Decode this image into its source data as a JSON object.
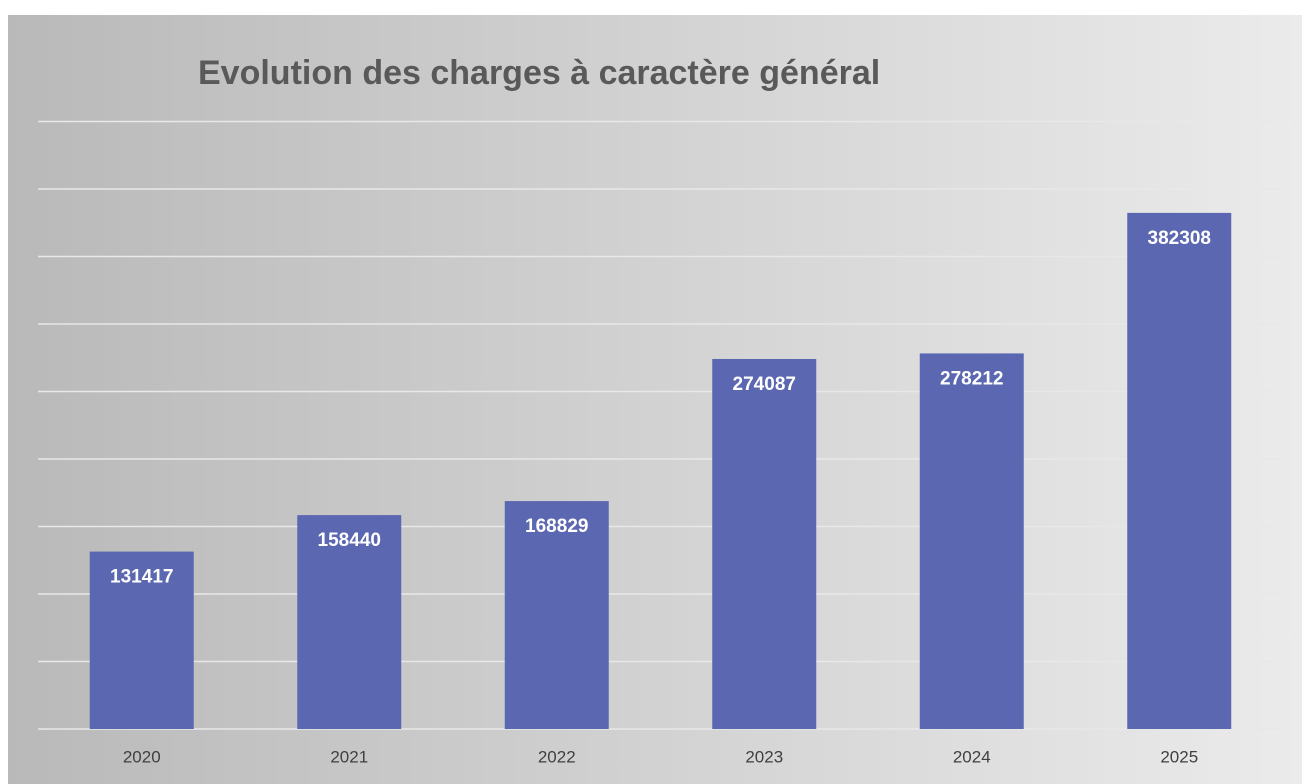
{
  "chart_data": {
    "type": "bar",
    "title": "Evolution des charges à caractère général",
    "categories": [
      "2020",
      "2021",
      "2022",
      "2023",
      "2024",
      "2025"
    ],
    "values": [
      131417,
      158440,
      168829,
      274087,
      278212,
      382308
    ],
    "color": "#5b67b1",
    "ylim": [
      0,
      450000
    ],
    "yticks": [
      0,
      50000,
      100000,
      150000,
      200000,
      250000,
      300000,
      350000,
      400000,
      450000
    ],
    "grid": true
  }
}
